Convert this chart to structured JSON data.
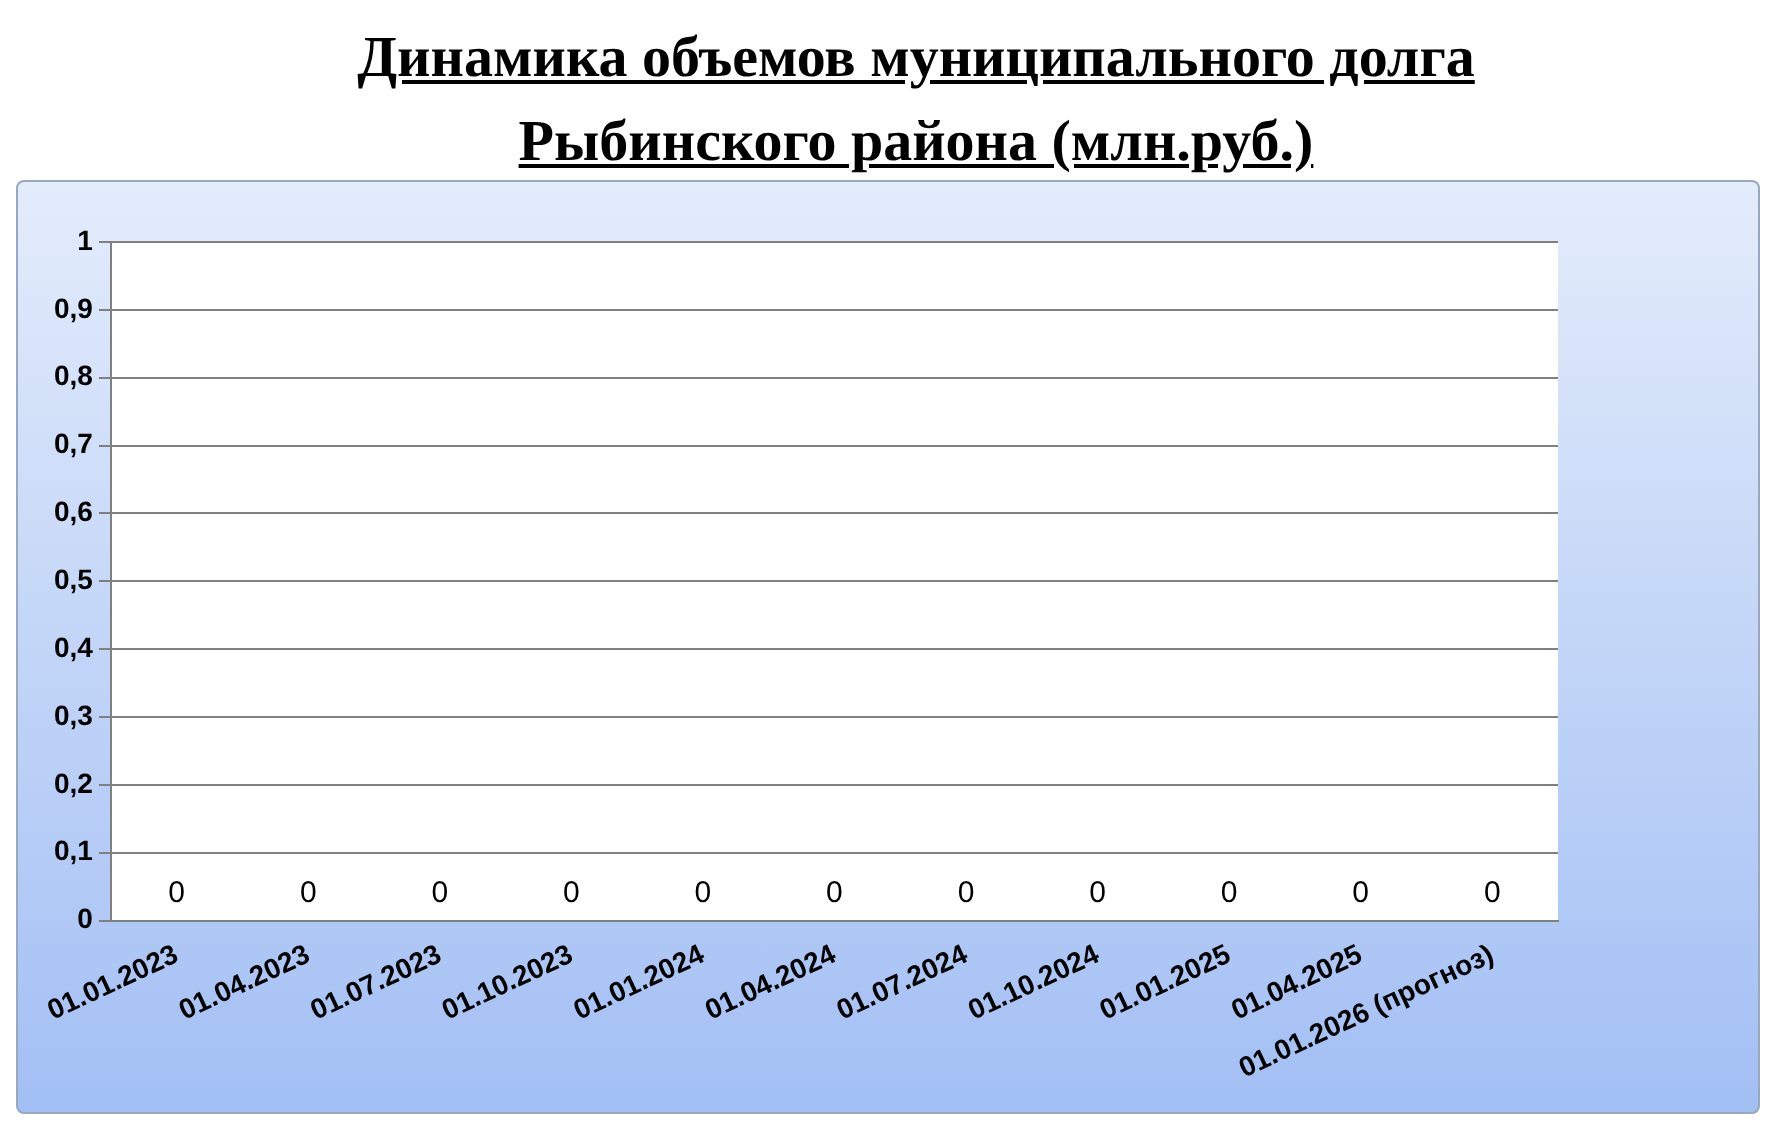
{
  "chart_data": {
    "type": "bar",
    "title": "Динамика объемов муниципального долга\nРыбинского района (млн.руб.)",
    "categories": [
      "01.01.2023",
      "01.04.2023",
      "01.07.2023",
      "01.10.2023",
      "01.01.2024",
      "01.04.2024",
      "01.07.2024",
      "01.10.2024",
      "01.01.2025",
      "01.04.2025",
      "01.01.2026 (прогноз)"
    ],
    "values": [
      0,
      0,
      0,
      0,
      0,
      0,
      0,
      0,
      0,
      0,
      0
    ],
    "ylim": [
      0,
      1
    ],
    "yticks": [
      0,
      {
        "value": 0.1,
        "label": "0,1"
      },
      {
        "value": 0.2,
        "label": "0,2"
      },
      {
        "value": 0.3,
        "label": "0,3"
      },
      {
        "value": 0.4,
        "label": "0,4"
      },
      {
        "value": 0.5,
        "label": "0,5"
      },
      {
        "value": 0.6,
        "label": "0,6"
      },
      {
        "value": 0.7,
        "label": "0,7"
      },
      {
        "value": 0.8,
        "label": "0,8"
      },
      {
        "value": 0.9,
        "label": "0,9"
      },
      1
    ],
    "grid": "y",
    "legend": false,
    "data_labels": true
  }
}
